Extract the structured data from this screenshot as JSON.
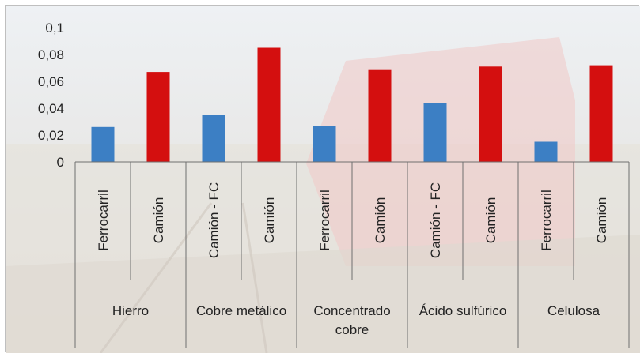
{
  "chart_data": {
    "type": "bar",
    "ylim": [
      0,
      0.1
    ],
    "yticks": [
      "0",
      "0,02",
      "0,04",
      "0,06",
      "0,08",
      "0,1"
    ],
    "grid": false,
    "legend": "none",
    "groups": [
      {
        "label_lines": [
          "Hierro"
        ],
        "categories": [
          "Ferrocarril",
          "Camión"
        ]
      },
      {
        "label_lines": [
          "Cobre metálico"
        ],
        "categories": [
          "Camión - FC",
          "Camión"
        ]
      },
      {
        "label_lines": [
          "Concentrado",
          "cobre"
        ],
        "categories": [
          "Ferrocarril",
          "Camión"
        ]
      },
      {
        "label_lines": [
          "Ácido sulfúrico"
        ],
        "categories": [
          "Camión - FC",
          "Camión"
        ]
      },
      {
        "label_lines": [
          "Celulosa"
        ],
        "categories": [
          "Ferrocarril",
          "Camión"
        ]
      }
    ],
    "categories": [
      "Ferrocarril",
      "Camión",
      "Camión - FC",
      "Camión",
      "Ferrocarril",
      "Camión",
      "Camión - FC",
      "Camión",
      "Ferrocarril",
      "Camión"
    ],
    "values": [
      0.026,
      0.067,
      0.035,
      0.085,
      0.027,
      0.069,
      0.044,
      0.071,
      0.015,
      0.072
    ],
    "bar_colors": [
      "#3c7fc4",
      "#d40f0f",
      "#3c7fc4",
      "#d40f0f",
      "#3c7fc4",
      "#d40f0f",
      "#3c7fc4",
      "#d40f0f",
      "#3c7fc4",
      "#d40f0f"
    ]
  }
}
